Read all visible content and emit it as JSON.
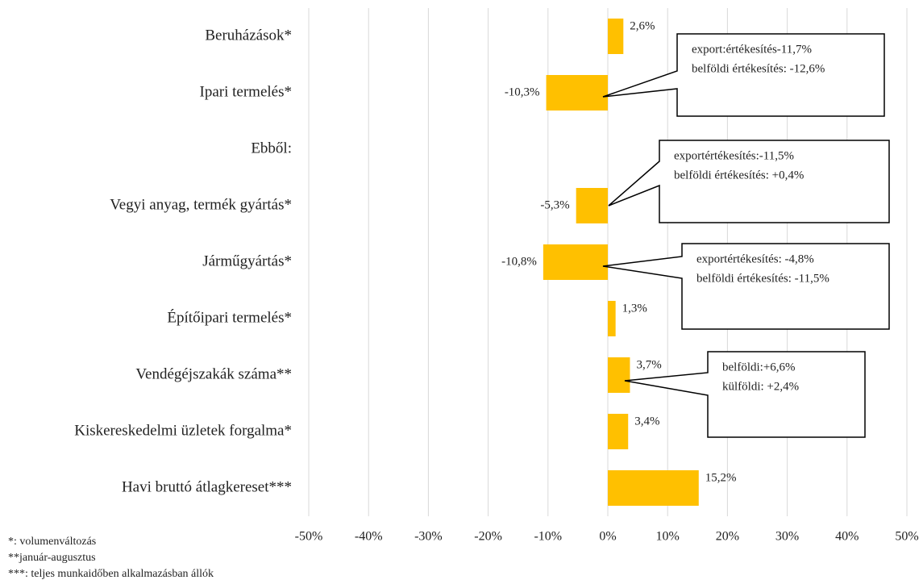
{
  "chart_data": {
    "type": "bar",
    "orientation": "horizontal",
    "categories": [
      "Beruházások*",
      "Ipari termelés*",
      "Ebből:",
      "Vegyi anyag, termék gyártás*",
      "Járműgyártás*",
      "Építőipari termelés*",
      "Vendégéjszakák száma**",
      "Kiskereskedelmi üzletek forgalma*",
      "Havi bruttó átlagkereset***"
    ],
    "values": [
      2.6,
      -10.3,
      null,
      -5.3,
      -10.8,
      1.3,
      3.7,
      3.4,
      15.2
    ],
    "value_labels": [
      "2,6%",
      "-10,3%",
      null,
      "-5,3%",
      "-10,8%",
      "1,3%",
      "3,7%",
      "3,4%",
      "15,2%"
    ],
    "color": "#ffc000",
    "xlim": [
      -50,
      50
    ],
    "xticks": [
      {
        "value": -50,
        "label": "-50%"
      },
      {
        "value": -40,
        "label": "-40%"
      },
      {
        "value": -30,
        "label": "-30%"
      },
      {
        "value": -20,
        "label": "-20%"
      },
      {
        "value": -10,
        "label": "-10%"
      },
      {
        "value": 0,
        "label": "0%"
      },
      {
        "value": 10,
        "label": "10%"
      },
      {
        "value": 20,
        "label": "20%"
      },
      {
        "value": 30,
        "label": "30%"
      },
      {
        "value": 40,
        "label": "40%"
      },
      {
        "value": 50,
        "label": "50%"
      }
    ],
    "grid": true,
    "annotations": [
      [
        "export:értékesítés-11,7%",
        "belföldi értékesítés: -12,6%"
      ],
      [
        "exportértékesítés:-11,5%",
        "belföldi értékesítés: +0,4%"
      ],
      [
        "exportértékesítés: -4,8%",
        "belföldi értékesítés: -11,5%"
      ],
      [
        "belföldi:+6,6%",
        "külföldi:  +2,4%"
      ]
    ],
    "footnotes": [
      "*: volumenváltozás",
      "**január-augusztus",
      "***: teljes munkaidőben alkalmazásban állók"
    ]
  }
}
